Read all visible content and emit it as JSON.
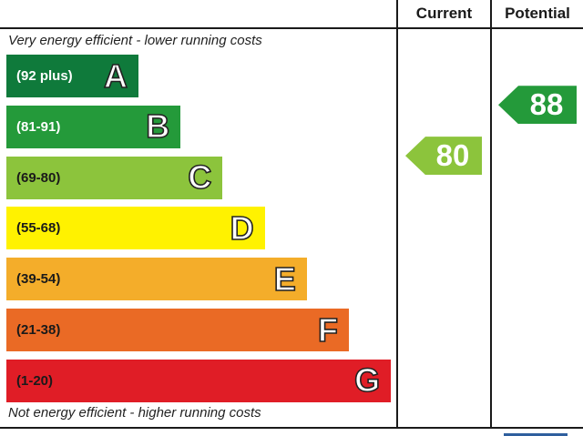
{
  "header": {
    "current_label": "Current",
    "potential_label": "Potential"
  },
  "captions": {
    "top": "Very energy efficient - lower running costs",
    "bottom": "Not energy efficient - higher running costs"
  },
  "chart_data": {
    "type": "table",
    "bands": [
      {
        "letter": "A",
        "range": "(92 plus)",
        "color": "#0f7a3b",
        "text_color": "#ffffff"
      },
      {
        "letter": "B",
        "range": "(81-91)",
        "color": "#249a3a",
        "text_color": "#ffffff"
      },
      {
        "letter": "C",
        "range": "(69-80)",
        "color": "#8cc43c",
        "text_color": "#1a1a1a"
      },
      {
        "letter": "D",
        "range": "(55-68)",
        "color": "#fff200",
        "text_color": "#1a1a1a"
      },
      {
        "letter": "E",
        "range": "(39-54)",
        "color": "#f4ad2a",
        "text_color": "#1a1a1a"
      },
      {
        "letter": "F",
        "range": "(21-38)",
        "color": "#ea6a25",
        "text_color": "#1a1a1a"
      },
      {
        "letter": "G",
        "range": "(1-20)",
        "color": "#e01d26",
        "text_color": "#1a1a1a"
      }
    ],
    "current": {
      "value": "80",
      "band": "C",
      "color": "#8cc43c"
    },
    "potential": {
      "value": "88",
      "band": "B",
      "color": "#249a3a"
    }
  }
}
